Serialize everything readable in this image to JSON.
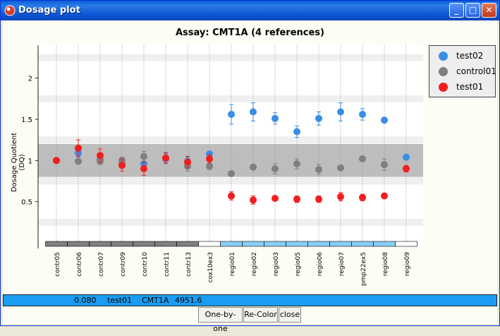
{
  "window": {
    "title": "Dosage plot",
    "buttons": {
      "minimize": "_",
      "maximize": "□",
      "close": "✕"
    }
  },
  "plot": {
    "title": "Assay: CMT1A (4 references)",
    "ylabel": "Dosage Quotient (DQ)"
  },
  "legend": [
    {
      "label": "test02",
      "color": "#3a8ee6"
    },
    {
      "label": "control01",
      "color": "#7f7f7f"
    },
    {
      "label": "test01",
      "color": "#f21e1e"
    }
  ],
  "chart_data": {
    "type": "scatter",
    "title": "Assay: CMT1A (4 references)",
    "ylabel": "Dosage Quotient (DQ)",
    "ylim": [
      0.0,
      2.4
    ],
    "yticks": [
      0.5,
      1.0,
      1.5,
      2.0
    ],
    "ytick_labels": [
      "0.5",
      "1",
      "1.5",
      "2"
    ],
    "categories": [
      "contr05",
      "contr06",
      "contr07",
      "contr09",
      "contr10",
      "contr11",
      "contr13",
      "cox10ex3",
      "regio01",
      "regio02",
      "regio03",
      "regio05",
      "regio06",
      "regio07",
      "pmp22ex5",
      "regio08",
      "regio09"
    ],
    "category_groups": [
      "ref",
      "ref",
      "ref",
      "ref",
      "ref",
      "ref",
      "ref",
      "none",
      "target",
      "target",
      "target",
      "target",
      "target",
      "target",
      "target",
      "target",
      "none"
    ],
    "normal_band": [
      0.8,
      1.2
    ],
    "series": [
      {
        "name": "test02",
        "color": "#3a8ee6",
        "values": [
          1.0,
          1.09,
          1.01,
          0.96,
          0.96,
          1.02,
          0.99,
          1.08,
          1.56,
          1.59,
          1.51,
          1.35,
          1.51,
          1.59,
          1.56,
          1.49,
          1.04
        ],
        "errors": [
          0.0,
          0.05,
          0.04,
          0.05,
          0.06,
          0.06,
          0.05,
          0.03,
          0.12,
          0.11,
          0.07,
          0.07,
          0.08,
          0.11,
          0.07,
          0.03,
          0.03
        ]
      },
      {
        "name": "control01",
        "color": "#7f7f7f",
        "values": [
          1.0,
          0.99,
          0.99,
          1.0,
          1.05,
          1.03,
          0.93,
          0.93,
          0.84,
          0.92,
          0.9,
          0.96,
          0.89,
          0.91,
          1.02,
          0.95,
          0.9
        ],
        "errors": [
          0.0,
          0.03,
          0.04,
          0.04,
          0.06,
          0.07,
          0.06,
          0.04,
          0.02,
          0.03,
          0.06,
          0.06,
          0.06,
          0.03,
          0.03,
          0.07,
          0.03
        ]
      },
      {
        "name": "test01",
        "color": "#f21e1e",
        "values": [
          1.0,
          1.15,
          1.06,
          0.94,
          0.9,
          1.03,
          0.98,
          1.02,
          0.57,
          0.52,
          0.54,
          0.53,
          0.53,
          0.56,
          0.55,
          0.57,
          0.9
        ],
        "errors": [
          0.0,
          0.1,
          0.08,
          0.07,
          0.08,
          0.06,
          0.07,
          0.05,
          0.05,
          0.05,
          0.03,
          0.04,
          0.04,
          0.05,
          0.04,
          0.03,
          0.04
        ]
      }
    ]
  },
  "status": {
    "value": "0.080",
    "sample": "test01",
    "assay": "CMT1A",
    "number": "4951.6"
  },
  "buttons": {
    "one_by_one": "One-by-one",
    "recolor": "Re-Color",
    "close": "close"
  }
}
